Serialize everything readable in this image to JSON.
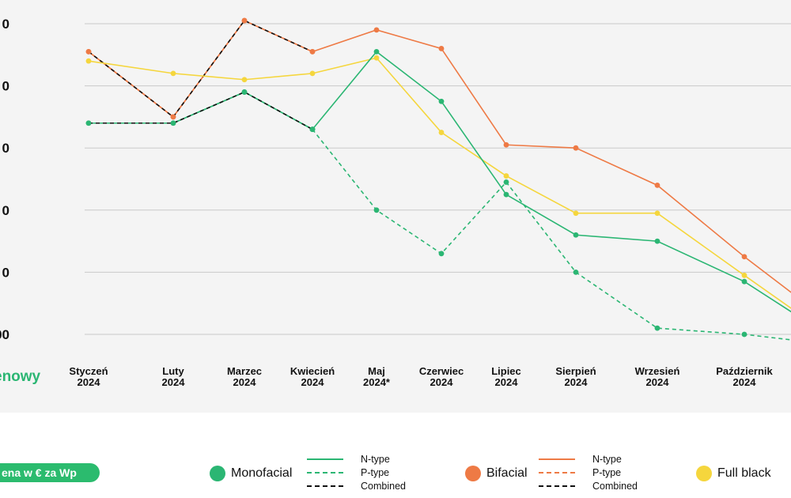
{
  "trend_label": "enowy",
  "unit_label": "ena w € za Wp",
  "legend": {
    "monofacial": "Monofacial",
    "bifacial": "Bifacial",
    "full_black": "Full black",
    "n_type": "N-type",
    "p_type": "P-type",
    "combined": "Combined"
  },
  "colors": {
    "monofacial": "#2bb673",
    "bifacial": "#ee7a45",
    "full_black": "#f5d63d",
    "combined": "#111111",
    "grid": "#c9c9c9"
  },
  "chart_data": {
    "type": "line",
    "categories": [
      [
        "Styczeń",
        "2024"
      ],
      [
        "Luty",
        "2024"
      ],
      [
        "Marzec",
        "2024"
      ],
      [
        "Kwiecień",
        "2024"
      ],
      [
        "Maj",
        "2024*"
      ],
      [
        "Czerwiec",
        "2024"
      ],
      [
        "Lipiec",
        "2024"
      ],
      [
        "Sierpień",
        "2024"
      ],
      [
        "Wrzesień",
        "2024"
      ],
      [
        "Październik",
        "2024"
      ],
      [
        "",
        ""
      ]
    ],
    "y_ticks": [
      "0",
      "0",
      "0",
      "0",
      "0",
      "00"
    ],
    "ylim": [
      0,
      5
    ],
    "grid": true,
    "series": [
      {
        "key": "bifacial_n",
        "color": "bifacial",
        "dash": false,
        "values": [
          4.55,
          3.5,
          5.05,
          4.55,
          4.9,
          4.6,
          3.05,
          3.0,
          2.4,
          1.25,
          0.6
        ]
      },
      {
        "key": "bifacial_combined",
        "color": "bifacial",
        "dash": true,
        "combined": true,
        "values": [
          4.55,
          3.5,
          5.05,
          4.55,
          null,
          null,
          null,
          null,
          null,
          null,
          null
        ]
      },
      {
        "key": "full_black",
        "color": "full_black",
        "dash": false,
        "values": [
          4.4,
          4.2,
          4.1,
          4.2,
          4.45,
          3.25,
          2.55,
          1.95,
          1.95,
          0.95,
          0.35
        ]
      },
      {
        "key": "mono_n",
        "color": "monofacial",
        "dash": false,
        "values": [
          3.4,
          3.4,
          3.9,
          3.3,
          4.55,
          3.75,
          2.25,
          1.6,
          1.5,
          0.85,
          0.3
        ]
      },
      {
        "key": "mono_p",
        "color": "monofacial",
        "dash": true,
        "values": [
          null,
          null,
          null,
          3.3,
          2.0,
          1.3,
          2.45,
          1.0,
          0.1,
          0.0,
          -0.1
        ]
      },
      {
        "key": "mono_combined",
        "color": "monofacial",
        "dash": true,
        "combined": true,
        "values": [
          3.4,
          3.4,
          3.9,
          3.3,
          null,
          null,
          null,
          null,
          null,
          null,
          null
        ]
      }
    ]
  }
}
